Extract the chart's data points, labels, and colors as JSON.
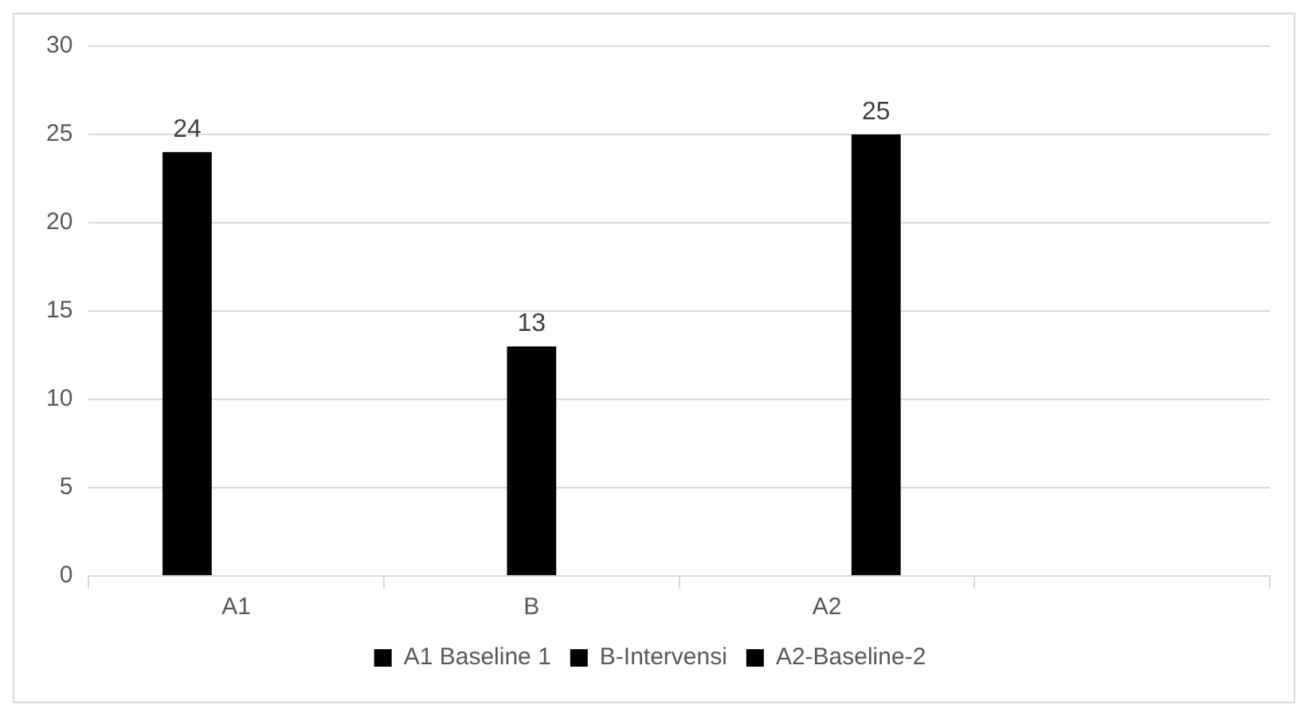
{
  "chart_data": {
    "type": "bar",
    "categories": [
      "A1",
      "B",
      "A2",
      null
    ],
    "series": [
      {
        "name": "A1 Baseline 1",
        "color": "#000000",
        "values": [
          24,
          null,
          null,
          null
        ]
      },
      {
        "name": "B-Intervensi",
        "color": "#000000",
        "values": [
          null,
          13,
          null,
          null
        ]
      },
      {
        "name": "A2-Baseline-2",
        "color": "#000000",
        "values": [
          null,
          null,
          25,
          null
        ]
      }
    ],
    "ylim": [
      0,
      30
    ],
    "yticks": [
      0,
      5,
      10,
      15,
      20,
      25,
      30
    ],
    "grid": "y",
    "legend": "bottom",
    "data_labels": true
  }
}
